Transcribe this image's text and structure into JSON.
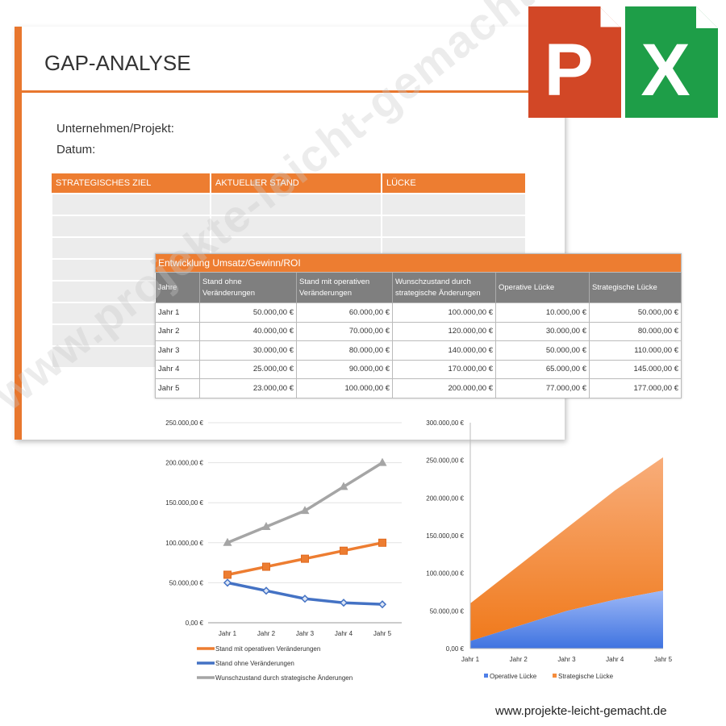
{
  "document": {
    "title": "GAP-ANALYSE",
    "company_label": "Unternehmen/Projekt:",
    "date_label": "Datum:",
    "columns": [
      "STRATEGISCHES ZIEL",
      "AKTUELLER STAND",
      "LÜCKE"
    ]
  },
  "table": {
    "title": "Entwicklung Umsatz/Gewinn/ROI",
    "headers": [
      "Jahre",
      "Stand ohne Veränderungen",
      "Stand mit operativen Veränderungen",
      "Wunschzustand durch strategische Änderungen",
      "Operative Lücke",
      "Strategische Lücke"
    ],
    "rows": [
      [
        "Jahr 1",
        "50.000,00 €",
        "60.000,00 €",
        "100.000,00 €",
        "10.000,00 €",
        "50.000,00 €"
      ],
      [
        "Jahr 2",
        "40.000,00 €",
        "70.000,00 €",
        "120.000,00 €",
        "30.000,00 €",
        "80.000,00 €"
      ],
      [
        "Jahr 3",
        "30.000,00 €",
        "80.000,00 €",
        "140.000,00 €",
        "50.000,00 €",
        "110.000,00 €"
      ],
      [
        "Jahr 4",
        "25.000,00 €",
        "90.000,00 €",
        "170.000,00 €",
        "65.000,00 €",
        "145.000,00 €"
      ],
      [
        "Jahr 5",
        "23.000,00 €",
        "100.000,00 €",
        "200.000,00 €",
        "77.000,00 €",
        "177.000,00 €"
      ]
    ]
  },
  "chart_data": [
    {
      "type": "line",
      "categories": [
        "Jahr 1",
        "Jahr 2",
        "Jahr 3",
        "Jahr 4",
        "Jahr 5"
      ],
      "ylim": [
        0,
        250000
      ],
      "yticks": [
        "0,00 €",
        "50.000,00 €",
        "100.000,00 €",
        "150.000,00 €",
        "200.000,00 €",
        "250.000,00 €"
      ],
      "grid": true,
      "legend": "bottom",
      "series": [
        {
          "name": "Stand mit operativen Veränderungen",
          "values": [
            60000,
            70000,
            80000,
            90000,
            100000
          ],
          "color": "#ed7d31",
          "marker": "square"
        },
        {
          "name": "Stand ohne Veränderungen",
          "values": [
            50000,
            40000,
            30000,
            25000,
            23000
          ],
          "color": "#4472c4",
          "marker": "diamond"
        },
        {
          "name": "Wunschzustand durch strategische Änderungen",
          "values": [
            100000,
            120000,
            140000,
            170000,
            200000
          ],
          "color": "#a5a5a5",
          "marker": "triangle"
        }
      ]
    },
    {
      "type": "area",
      "stacked": true,
      "categories": [
        "Jahr 1",
        "Jahr 2",
        "Jahr 3",
        "Jahr 4",
        "Jahr 5"
      ],
      "ylim": [
        0,
        300000
      ],
      "yticks": [
        "0,00 €",
        "50.000,00 €",
        "100.000,00 €",
        "150.000,00 €",
        "200.000,00 €",
        "250.000,00 €",
        "300.000,00 €"
      ],
      "grid": false,
      "legend": "bottom",
      "series": [
        {
          "name": "Operative Lücke",
          "values": [
            10000,
            30000,
            50000,
            65000,
            77000
          ],
          "color": "#5b8ff0"
        },
        {
          "name": "Strategische Lücke",
          "values": [
            50000,
            80000,
            110000,
            145000,
            177000
          ],
          "color": "#f58c3c"
        }
      ]
    }
  ],
  "logos": {
    "powerpoint": "P",
    "excel": "X",
    "powerpoint_color": "#d24726",
    "excel_color": "#1e9e48"
  },
  "watermark": "www.projekte-leicht-gemacht.de",
  "footer": "www.projekte-leicht-gemacht.de"
}
